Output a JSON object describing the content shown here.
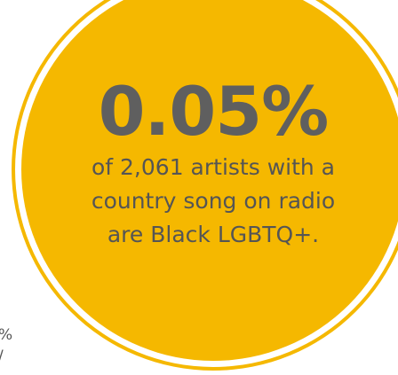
{
  "infographic": {
    "statistic": "0.05%",
    "caption_lines": [
      "of 2,061 artists with a",
      "country song on radio",
      "are Black LGBTQ+."
    ],
    "circle_color": "#f5b800",
    "statistic_color": "#5f5f5f",
    "caption_color": "#555555"
  },
  "edge_fragments": [
    "%",
    "/"
  ]
}
